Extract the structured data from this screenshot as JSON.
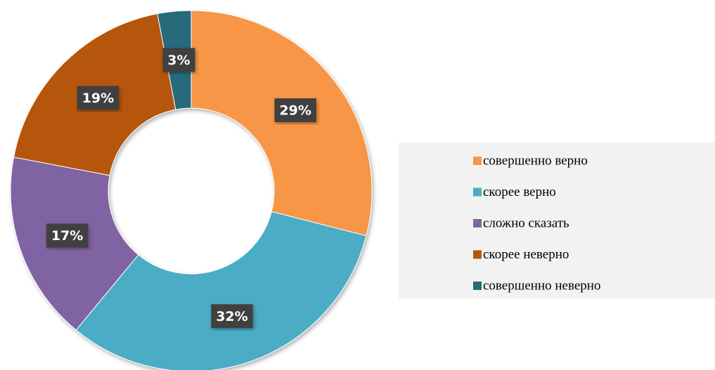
{
  "chart_data": {
    "type": "pie",
    "donut": true,
    "categories": [
      "совершенно верно",
      "скорее верно",
      "сложно сказать",
      "скорее неверно",
      "совершенно неверно"
    ],
    "values": [
      29,
      32,
      17,
      19,
      3
    ],
    "value_labels": [
      "29%",
      "32%",
      "17%",
      "19%",
      "3%"
    ],
    "colors": [
      "#f79646",
      "#4bacc6",
      "#8064a2",
      "#b65708",
      "#276a7c"
    ],
    "legend": "right"
  }
}
